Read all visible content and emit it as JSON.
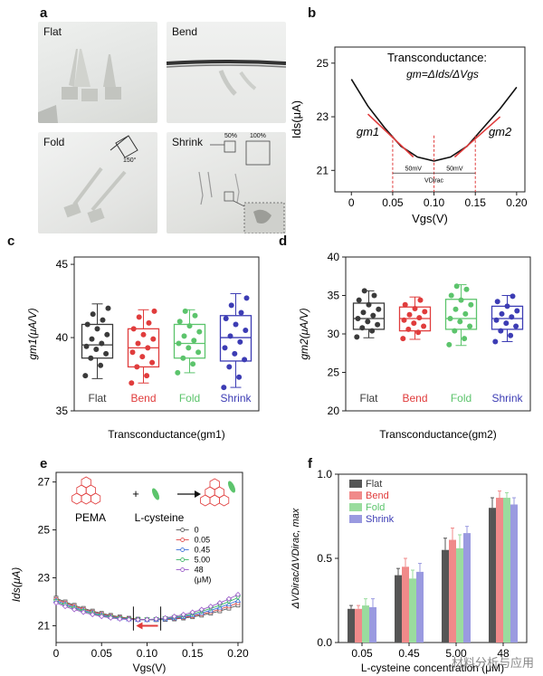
{
  "panel_labels": {
    "a": "a",
    "b": "b",
    "c": "c",
    "d": "d",
    "e": "e",
    "f": "f"
  },
  "photos": {
    "flat": "Flat",
    "bend": "Bend",
    "fold": "Fold",
    "shrink": "Shrink",
    "angle": "150°",
    "pct50": "50%",
    "pct100": "100%"
  },
  "colors": {
    "flat": "#3a3a3a",
    "bend": "#e03c3c",
    "fold": "#5cc46c",
    "shrink": "#3c3cb4"
  },
  "chart_data": [
    {
      "id": "b",
      "type": "line",
      "title": "Transconductance:",
      "formula": "gm=ΔIds/ΔVgs",
      "xlabel": "Vgs(V)",
      "ylabel": "Ids(μA)",
      "xlim": [
        -0.02,
        0.21
      ],
      "ylim": [
        20.2,
        25.6
      ],
      "xticks": [
        "0",
        "0.05",
        "0.10",
        "0.15",
        "0.20"
      ],
      "yticks": [
        "21",
        "23",
        "25"
      ],
      "x": [
        0.0,
        0.02,
        0.04,
        0.06,
        0.08,
        0.1,
        0.12,
        0.14,
        0.16,
        0.18,
        0.2
      ],
      "y": [
        24.4,
        23.4,
        22.6,
        21.9,
        21.5,
        21.35,
        21.5,
        21.9,
        22.6,
        23.3,
        24.1
      ],
      "annotations": {
        "gm1": "gm1",
        "gm2": "gm2",
        "left_span": "50mV",
        "right_span": "50mV",
        "vdirac": "VDirac"
      }
    },
    {
      "id": "c",
      "type": "box",
      "ylabel": "gm1(μA/V)",
      "xlabel": "Transconductance(gm1)",
      "ylim": [
        35,
        45.5
      ],
      "yticks": [
        "35",
        "40",
        "45"
      ],
      "categories": [
        "Flat",
        "Bend",
        "Fold",
        "Shrink"
      ],
      "boxes": [
        {
          "min": 37.2,
          "q1": 38.6,
          "median": 39.5,
          "q3": 40.9,
          "max": 42.3,
          "points": [
            37.4,
            38.1,
            38.6,
            38.9,
            39.2,
            39.4,
            39.6,
            39.9,
            40.2,
            40.6,
            40.9,
            41.2,
            41.6,
            42.0
          ]
        },
        {
          "min": 36.9,
          "q1": 38.0,
          "median": 39.3,
          "q3": 40.6,
          "max": 41.9,
          "points": [
            36.9,
            37.4,
            38.0,
            38.3,
            38.7,
            39.0,
            39.3,
            39.6,
            39.9,
            40.2,
            40.6,
            41.0,
            41.4,
            41.8
          ]
        },
        {
          "min": 37.6,
          "q1": 38.6,
          "median": 39.6,
          "q3": 40.9,
          "max": 41.9,
          "points": [
            37.6,
            38.2,
            38.6,
            39.0,
            39.3,
            39.6,
            39.8,
            40.1,
            40.4,
            40.8,
            41.1,
            41.5,
            41.8
          ]
        },
        {
          "min": 36.6,
          "q1": 38.4,
          "median": 40.0,
          "q3": 41.5,
          "max": 43.0,
          "points": [
            36.6,
            37.3,
            38.0,
            38.5,
            38.9,
            39.3,
            39.7,
            40.1,
            40.5,
            40.9,
            41.3,
            41.7,
            42.2,
            42.7
          ]
        }
      ]
    },
    {
      "id": "d",
      "type": "box",
      "ylabel": "gm2(μA/V)",
      "xlabel": "Transconductance(gm2)",
      "ylim": [
        20,
        40
      ],
      "yticks": [
        "20",
        "25",
        "30",
        "35",
        "40"
      ],
      "categories": [
        "Flat",
        "Bend",
        "Fold",
        "Shrink"
      ],
      "boxes": [
        {
          "min": 29.5,
          "q1": 30.6,
          "median": 32.0,
          "q3": 34.0,
          "max": 35.6,
          "points": [
            29.6,
            30.4,
            30.8,
            31.2,
            31.6,
            32.0,
            32.4,
            32.8,
            33.2,
            33.8,
            34.4,
            35.0,
            35.6
          ]
        },
        {
          "min": 29.3,
          "q1": 30.4,
          "median": 32.0,
          "q3": 33.5,
          "max": 34.8,
          "points": [
            29.4,
            30.2,
            30.6,
            31.0,
            31.4,
            31.8,
            32.1,
            32.5,
            32.9,
            33.3,
            33.8,
            34.4
          ]
        },
        {
          "min": 28.5,
          "q1": 30.6,
          "median": 32.0,
          "q3": 34.5,
          "max": 36.4,
          "points": [
            28.6,
            29.4,
            30.4,
            31.0,
            31.6,
            32.0,
            32.6,
            33.2,
            33.8,
            34.4,
            35.0,
            35.8,
            36.2
          ]
        },
        {
          "min": 29.0,
          "q1": 30.6,
          "median": 32.0,
          "q3": 33.6,
          "max": 35.0,
          "points": [
            29.0,
            29.8,
            30.4,
            31.0,
            31.4,
            31.8,
            32.2,
            32.6,
            33.0,
            33.6,
            34.2,
            34.9
          ]
        }
      ]
    },
    {
      "id": "e",
      "type": "line",
      "xlabel": "Vgs(V)",
      "ylabel": "Ids(μA)",
      "xlim": [
        0,
        0.205
      ],
      "ylim": [
        20.3,
        27.4
      ],
      "xticks": [
        "0",
        "0.05",
        "0.10",
        "0.15",
        "0.20"
      ],
      "yticks": [
        "21",
        "23",
        "25",
        "27"
      ],
      "legend_title": "(μM)",
      "scheme": {
        "pema": "PEMA",
        "lcys": "L-cysteine",
        "plus": "+"
      },
      "series": [
        {
          "name": "0",
          "color": "#555555",
          "marker": "square",
          "xmin": 0.11
        },
        {
          "name": "0.05",
          "color": "#e04848",
          "marker": "circle",
          "xmin": 0.105
        },
        {
          "name": "0.45",
          "color": "#3c70d8",
          "marker": "triangle",
          "xmin": 0.1
        },
        {
          "name": "5.00",
          "color": "#3cb464",
          "marker": "triangle-down",
          "xmin": 0.095
        },
        {
          "name": "48",
          "color": "#9a5ac8",
          "marker": "diamond",
          "xmin": 0.09
        }
      ]
    },
    {
      "id": "f",
      "type": "bar",
      "ylabel": "ΔVDirac/ΔVDirac, max",
      "xlabel": "L-cysteine concentration (μM)",
      "ylim": [
        0,
        1.0
      ],
      "yticks": [
        "0.0",
        "0.5",
        "1.0"
      ],
      "categories": [
        "0.05",
        "0.45",
        "5.00",
        "48"
      ],
      "series": [
        {
          "name": "Flat",
          "values": [
            0.2,
            0.4,
            0.55,
            0.8
          ],
          "errors": [
            0.02,
            0.04,
            0.07,
            0.06
          ]
        },
        {
          "name": "Bend",
          "values": [
            0.2,
            0.45,
            0.61,
            0.86
          ],
          "errors": [
            0.02,
            0.05,
            0.07,
            0.04
          ]
        },
        {
          "name": "Fold",
          "values": [
            0.22,
            0.38,
            0.56,
            0.86
          ],
          "errors": [
            0.04,
            0.05,
            0.08,
            0.03
          ]
        },
        {
          "name": "Shrink",
          "values": [
            0.21,
            0.42,
            0.65,
            0.82
          ],
          "errors": [
            0.05,
            0.05,
            0.04,
            0.04
          ]
        }
      ]
    }
  ],
  "watermark": "材料分析与应用"
}
